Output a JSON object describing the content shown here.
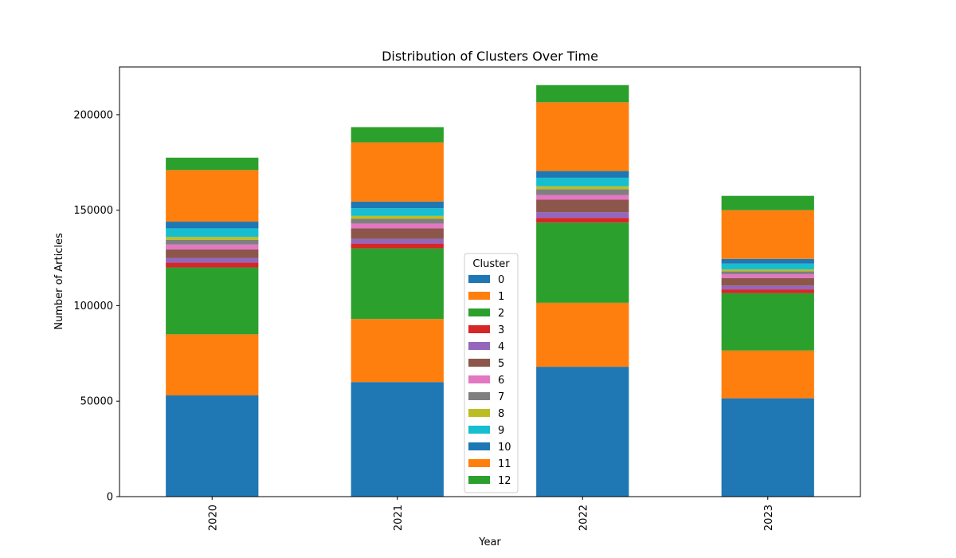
{
  "chart_data": {
    "type": "bar",
    "stacked": true,
    "title": "Distribution of Clusters Over Time",
    "xlabel": "Year",
    "ylabel": "Number of Articles",
    "categories": [
      "2020",
      "2021",
      "2022",
      "2023"
    ],
    "ylim": [
      0,
      225000
    ],
    "yticks": [
      0,
      50000,
      100000,
      150000,
      200000
    ],
    "grid": false,
    "legend": {
      "title": "Cluster",
      "placement": "lower-center"
    },
    "series": [
      {
        "name": "0",
        "color": "#1f77b4",
        "values": [
          53000,
          60000,
          68000,
          51500
        ]
      },
      {
        "name": "1",
        "color": "#ff7f0e",
        "values": [
          32000,
          33000,
          33500,
          25000
        ]
      },
      {
        "name": "2",
        "color": "#2ca02c",
        "values": [
          35000,
          37000,
          42000,
          30000
        ]
      },
      {
        "name": "3",
        "color": "#d62728",
        "values": [
          2500,
          2500,
          2500,
          2000
        ]
      },
      {
        "name": "4",
        "color": "#9467bd",
        "values": [
          2500,
          2500,
          3000,
          2000
        ]
      },
      {
        "name": "5",
        "color": "#8c564b",
        "values": [
          4500,
          5500,
          6500,
          4000
        ]
      },
      {
        "name": "6",
        "color": "#e377c2",
        "values": [
          2500,
          2500,
          2500,
          2000
        ]
      },
      {
        "name": "7",
        "color": "#7f7f7f",
        "values": [
          2500,
          2500,
          3000,
          1500
        ]
      },
      {
        "name": "8",
        "color": "#bcbd22",
        "values": [
          1500,
          1500,
          1500,
          1000
        ]
      },
      {
        "name": "9",
        "color": "#17becf",
        "values": [
          4500,
          4000,
          4500,
          3000
        ]
      },
      {
        "name": "10",
        "color": "#1f77b4",
        "values": [
          3500,
          3500,
          3500,
          2500
        ]
      },
      {
        "name": "11",
        "color": "#ff7f0e",
        "values": [
          27000,
          31000,
          36000,
          25500
        ]
      },
      {
        "name": "12",
        "color": "#2ca02c",
        "values": [
          6500,
          8000,
          9000,
          7500
        ]
      }
    ]
  }
}
